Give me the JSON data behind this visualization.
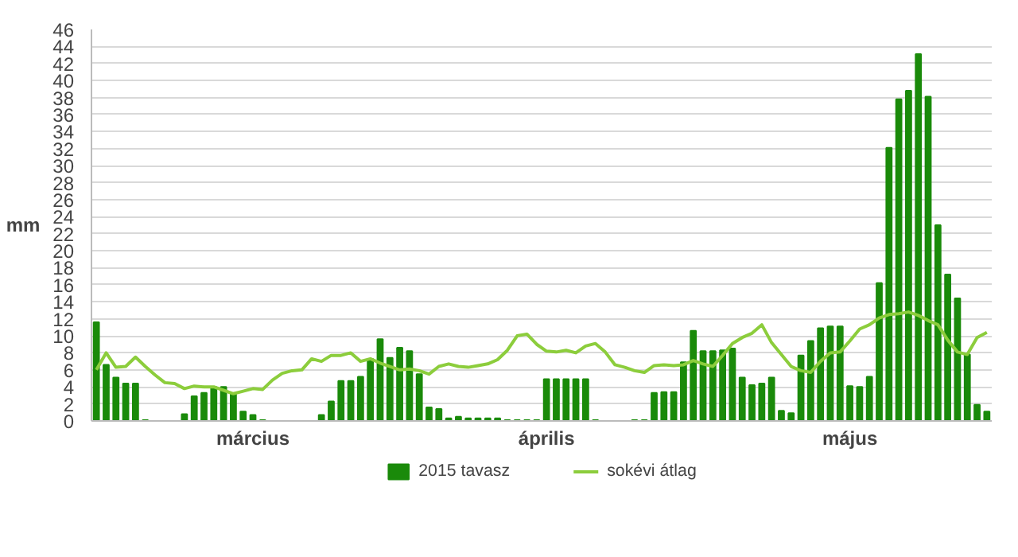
{
  "chart_data": {
    "type": "bar",
    "ylabel": "mm",
    "categories": [
      null,
      null,
      null,
      null,
      null,
      null,
      null,
      null,
      null,
      null,
      null,
      null,
      null,
      null,
      null,
      null,
      "március",
      null,
      null,
      null,
      null,
      null,
      null,
      null,
      null,
      null,
      null,
      null,
      null,
      null,
      null,
      null,
      null,
      null,
      null,
      null,
      null,
      null,
      null,
      null,
      null,
      null,
      null,
      null,
      null,
      null,
      "április",
      null,
      null,
      null,
      null,
      null,
      null,
      null,
      null,
      null,
      null,
      null,
      null,
      null,
      null,
      null,
      null,
      null,
      null,
      null,
      null,
      null,
      null,
      null,
      null,
      null,
      null,
      null,
      null,
      null,
      null,
      "május",
      null,
      null,
      null,
      null,
      null,
      null,
      null,
      null,
      null,
      null,
      null,
      null,
      null,
      null
    ],
    "series": [
      {
        "name": "2015 tavasz",
        "color": "#1a8a0a",
        "values": [
          11.6,
          6.6,
          5.1,
          4.4,
          4.4,
          0.1,
          0,
          0,
          0,
          0.8,
          2.9,
          3.3,
          4.0,
          4.0,
          3.2,
          1.1,
          0.7,
          0.1,
          0,
          0,
          0,
          0,
          0,
          0.7,
          2.3,
          4.7,
          4.7,
          5.2,
          7.3,
          9.6,
          7.4,
          8.6,
          8.2,
          5.5,
          1.6,
          1.4,
          0.3,
          0.5,
          0.3,
          0.3,
          0.3,
          0.3,
          0.1,
          0.1,
          0.1,
          0.1,
          4.9,
          4.9,
          4.9,
          4.9,
          4.9,
          0.1,
          0,
          0,
          0,
          0.1,
          0.1,
          3.3,
          3.4,
          3.4,
          6.9,
          10.6,
          8.2,
          8.2,
          8.3,
          8.5,
          5.1,
          4.2,
          4.4,
          5.1,
          1.2,
          0.9,
          7.7,
          9.4,
          10.9,
          11.1,
          11.1,
          4.1,
          4.0,
          5.2,
          16.2,
          32.1,
          37.8,
          38.8,
          43.1,
          38.1,
          23.0,
          17.2,
          14.4,
          7.8,
          1.9,
          1.1
        ]
      },
      {
        "name": "sokévi átlag",
        "type": "line",
        "color": "#8ccd3c",
        "values": [
          6.0,
          8.0,
          6.3,
          6.4,
          7.5,
          6.4,
          5.4,
          4.5,
          4.4,
          3.8,
          4.1,
          4.0,
          4.0,
          3.6,
          3.2,
          3.5,
          3.8,
          3.7,
          4.8,
          5.6,
          5.9,
          6.0,
          7.3,
          7.0,
          7.7,
          7.7,
          8.0,
          7.0,
          7.3,
          6.8,
          6.4,
          6.0,
          6.1,
          5.9,
          5.5,
          6.4,
          6.7,
          6.4,
          6.3,
          6.5,
          6.7,
          7.2,
          8.3,
          10.0,
          10.2,
          9.0,
          8.2,
          8.1,
          8.3,
          8.0,
          8.8,
          9.1,
          8.1,
          6.6,
          6.3,
          5.9,
          5.7,
          6.5,
          6.6,
          6.5,
          6.6,
          7.1,
          6.7,
          6.4,
          7.7,
          9.1,
          9.8,
          10.3,
          11.3,
          9.2,
          7.8,
          6.4,
          5.9,
          5.7,
          7.0,
          8.0,
          8.1,
          9.4,
          10.8,
          11.3,
          12.1,
          12.5,
          12.6,
          12.8,
          12.4,
          11.8,
          11.3,
          9.5,
          8.1,
          7.8,
          9.8,
          10.4
        ]
      }
    ],
    "ylim": [
      0,
      46
    ],
    "yticks": [
      0,
      2,
      4,
      6,
      8,
      10,
      12,
      14,
      16,
      18,
      20,
      22,
      24,
      26,
      28,
      30,
      32,
      34,
      36,
      38,
      40,
      42,
      44,
      46
    ],
    "grid": "y",
    "legend": "bottom"
  }
}
